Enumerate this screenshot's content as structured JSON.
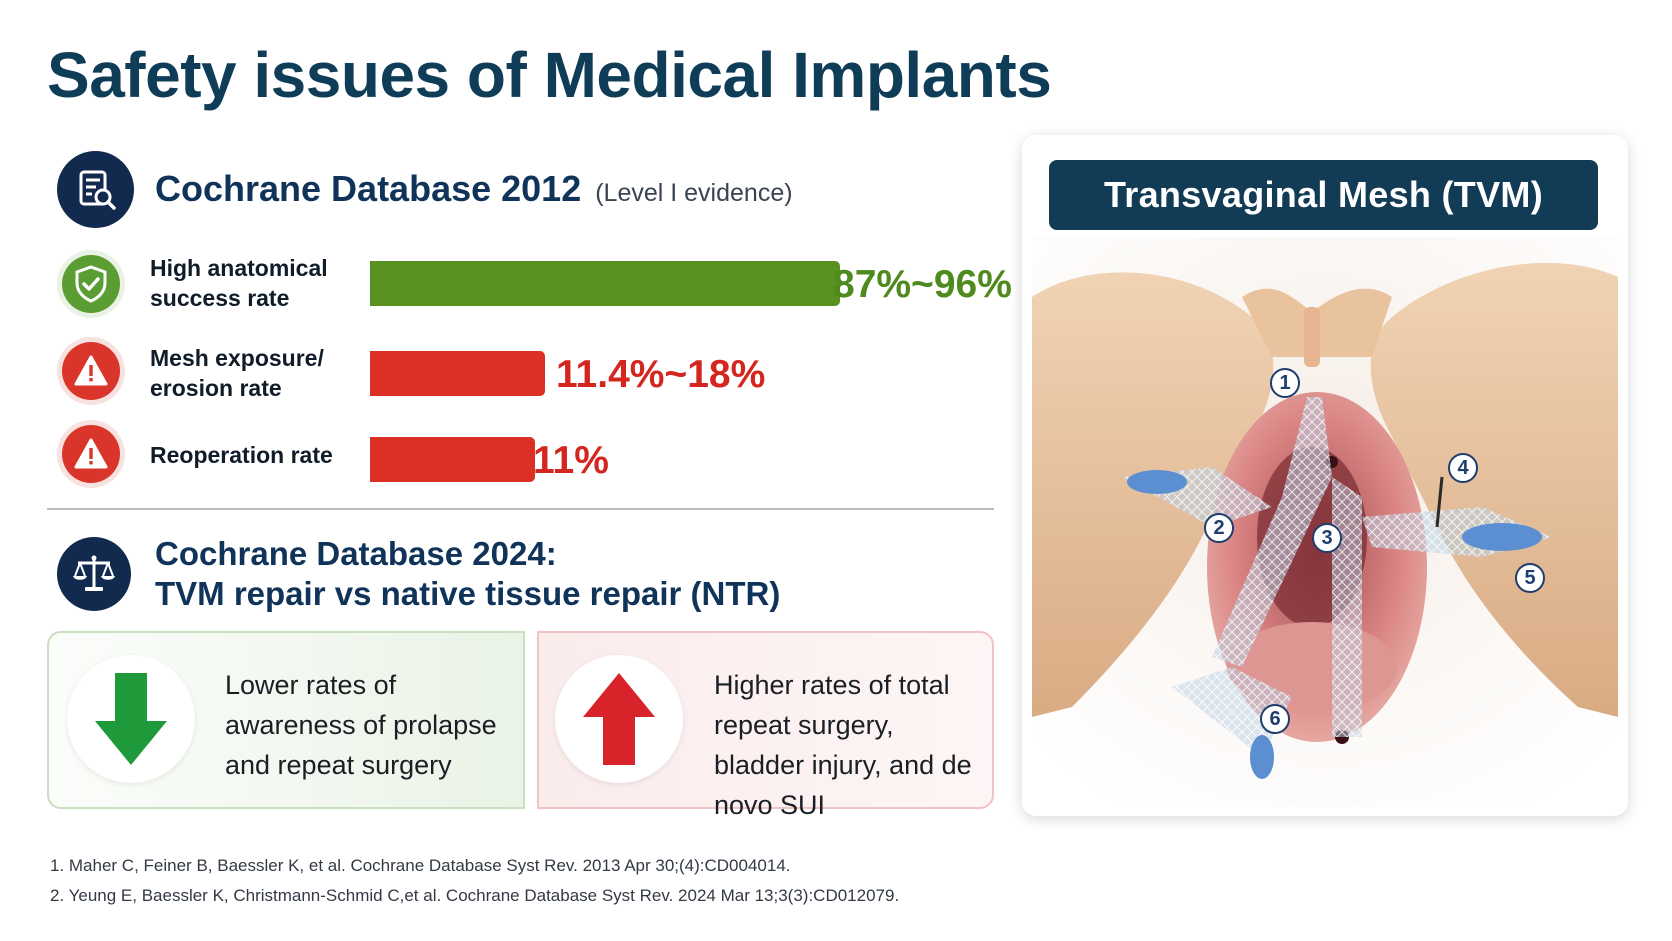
{
  "title": "Safety issues of Medical Implants",
  "section1": {
    "title": "Cochrane Database 2012",
    "subtitle": "(Level I evidence)",
    "rows": [
      {
        "label": "High anatomical success rate",
        "value_text": "87%~96%",
        "fill": 0.96,
        "status": "success",
        "icon": "shield-check-icon",
        "color": "#5a9222"
      },
      {
        "label": "Mesh exposure/ erosion rate",
        "value_text": "11.4%~18%",
        "fill": 0.18,
        "status": "warning",
        "icon": "warning-triangle-icon",
        "color": "#dc3026"
      },
      {
        "label": "Reoperation rate",
        "value_text": "11%",
        "fill": 0.11,
        "status": "warning",
        "icon": "warning-triangle-icon",
        "color": "#dc3026"
      }
    ]
  },
  "section2": {
    "title_line1": "Cochrane Database 2024:",
    "title_line2": "TVM repair vs native tissue repair (NTR)",
    "lower": {
      "text": "Lower rates of awareness of prolapse and repeat surgery",
      "icon": "arrow-down-icon",
      "color": "#1f9a3a"
    },
    "higher": {
      "text": "Higher rates of total repeat surgery, bladder injury, and de novo SUI",
      "icon": "arrow-up-icon",
      "color": "#d9232b"
    }
  },
  "references": [
    "1.  Maher C, Feiner B, Baessler K, et al. Cochrane Database Syst Rev. 2013 Apr 30;(4):CD004014.",
    "2.  Yeung E, Baessler K, Christmann-Schmid C,et al. Cochrane Database Syst Rev. 2024 Mar 13;3(3):CD012079."
  ],
  "image_panel": {
    "banner": "Transvaginal Mesh (TVM)",
    "markers": [
      "1",
      "2",
      "3",
      "4",
      "5",
      "6"
    ]
  }
}
